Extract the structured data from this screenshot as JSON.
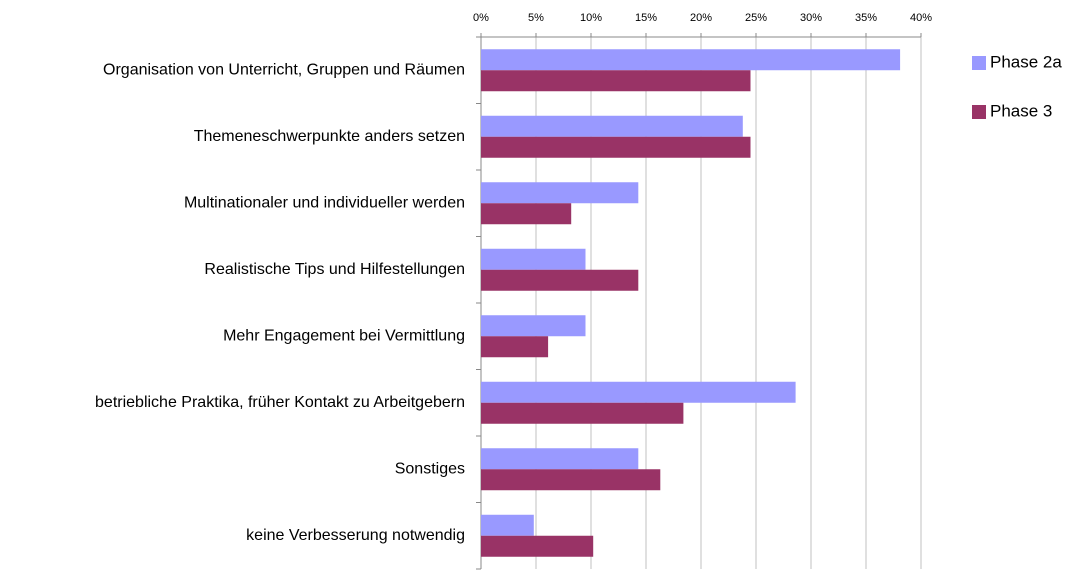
{
  "chart_data": {
    "type": "hbar",
    "categories": [
      "Organisation von Unterricht, Gruppen und Räumen",
      "Themeneschwerpunkte anders setzen",
      "Multinationaler und individueller werden",
      "Realistische Tips und Hilfestellungen",
      "Mehr Engagement bei Vermittlung",
      "betriebliche Praktika, früher Kontakt zu Arbeitgebern",
      "Sonstiges",
      "keine Verbesserung notwendig"
    ],
    "series": [
      {
        "name": "Phase 2a",
        "color": "#9999ff",
        "values": [
          38.1,
          23.8,
          14.3,
          9.5,
          9.5,
          28.6,
          14.3,
          4.8
        ]
      },
      {
        "name": "Phase 3",
        "color": "#993366",
        "values": [
          24.5,
          24.5,
          8.2,
          14.3,
          6.1,
          18.4,
          16.3,
          10.2
        ]
      }
    ],
    "xlim": [
      0,
      40
    ],
    "xticks": [
      {
        "value": 0,
        "label": "0%"
      },
      {
        "value": 5,
        "label": "5%"
      },
      {
        "value": 10,
        "label": "10%"
      },
      {
        "value": 15,
        "label": "15%"
      },
      {
        "value": 20,
        "label": "20%"
      },
      {
        "value": 25,
        "label": "25%"
      },
      {
        "value": 30,
        "label": "30%"
      },
      {
        "value": 35,
        "label": "35%"
      },
      {
        "value": 40,
        "label": "40%"
      }
    ],
    "grid": true,
    "legend": "right"
  }
}
